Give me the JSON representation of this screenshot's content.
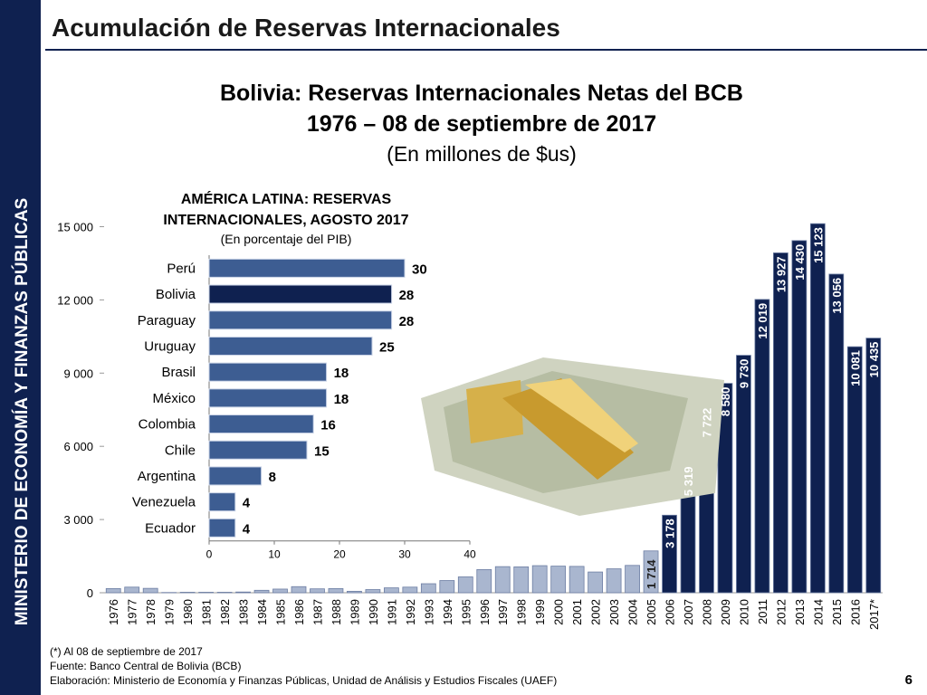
{
  "header": {
    "title": "Acumulación de Reservas Internacionales",
    "side_label": "MINISTERIO DE ECONOMÍA Y FINANZAS PÚBLICAS",
    "page_number": "6"
  },
  "chart_data": [
    {
      "type": "bar",
      "title": "Bolivia: Reservas Internacionales Netas del BCB",
      "subtitle": "1976 – 08 de septiembre de 2017",
      "unit_label": "(En millones de $us)",
      "categories": [
        "1976",
        "1977",
        "1978",
        "1979",
        "1980",
        "1981",
        "1982",
        "1983",
        "1984",
        "1985",
        "1986",
        "1987",
        "1988",
        "1989",
        "1990",
        "1991",
        "1992",
        "1993",
        "1994",
        "1995",
        "1996",
        "1997",
        "1998",
        "1999",
        "2000",
        "2001",
        "2002",
        "2003",
        "2004",
        "2005",
        "2006",
        "2007",
        "2008",
        "2009",
        "2010",
        "2011",
        "2012",
        "2013",
        "2014",
        "2015",
        "2016",
        "2017*"
      ],
      "values": [
        170,
        230,
        180,
        10,
        20,
        20,
        20,
        30,
        100,
        150,
        250,
        160,
        170,
        60,
        130,
        200,
        230,
        370,
        500,
        650,
        950,
        1070,
        1060,
        1110,
        1090,
        1080,
        850,
        980,
        1120,
        1714,
        3178,
        5319,
        7722,
        8580,
        9730,
        12019,
        13927,
        14430,
        15123,
        13056,
        10081,
        10435
      ],
      "value_labels": [
        null,
        null,
        null,
        null,
        null,
        null,
        null,
        null,
        null,
        null,
        null,
        null,
        null,
        null,
        null,
        null,
        null,
        null,
        null,
        null,
        null,
        null,
        null,
        null,
        null,
        null,
        null,
        null,
        null,
        "1 714",
        "3 178",
        "5 319",
        "7 722",
        "8 580",
        "9 730",
        "12 019",
        "13 927",
        "14 430",
        "15 123",
        "13 056",
        "10 081",
        "10 435"
      ],
      "colors": [
        "#a9b6cf",
        "#a9b6cf",
        "#a9b6cf",
        "#a9b6cf",
        "#a9b6cf",
        "#a9b6cf",
        "#a9b6cf",
        "#a9b6cf",
        "#a9b6cf",
        "#a9b6cf",
        "#a9b6cf",
        "#a9b6cf",
        "#a9b6cf",
        "#a9b6cf",
        "#a9b6cf",
        "#a9b6cf",
        "#a9b6cf",
        "#a9b6cf",
        "#a9b6cf",
        "#a9b6cf",
        "#a9b6cf",
        "#a9b6cf",
        "#a9b6cf",
        "#a9b6cf",
        "#a9b6cf",
        "#a9b6cf",
        "#a9b6cf",
        "#a9b6cf",
        "#a9b6cf",
        "#a9b6cf",
        "#0f2150",
        "#0f2150",
        "#0f2150",
        "#0f2150",
        "#0f2150",
        "#0f2150",
        "#0f2150",
        "#0f2150",
        "#0f2150",
        "#0f2150",
        "#0f2150",
        "#0f2150"
      ],
      "ylim": [
        0,
        15500
      ],
      "yticks": [
        0,
        {
          "value": 3000,
          "label": "3 000"
        },
        {
          "value": 6000,
          "label": "6 000"
        },
        {
          "value": 9000,
          "label": "9 000"
        },
        {
          "value": 12000,
          "label": "12 000"
        },
        {
          "value": 15000,
          "label": "15 000"
        }
      ]
    },
    {
      "type": "hbar",
      "title": "AMÉRICA LATINA: RESERVAS",
      "title_line2": "INTERNACIONALES, AGOSTO 2017",
      "subtitle": "(En porcentaje del PIB)",
      "categories": [
        "Perú",
        "Bolivia",
        "Paraguay",
        "Uruguay",
        "Brasil",
        "México",
        "Colombia",
        "Chile",
        "Argentina",
        "Venezuela",
        "Ecuador"
      ],
      "values": [
        30,
        28,
        28,
        25,
        18,
        18,
        16,
        15,
        8,
        4,
        4
      ],
      "colors": [
        "#3d5d92",
        "#0f2150",
        "#3d5d92",
        "#3d5d92",
        "#3d5d92",
        "#3d5d92",
        "#3d5d92",
        "#3d5d92",
        "#3d5d92",
        "#3d5d92",
        "#3d5d92"
      ],
      "xlim": [
        0,
        40
      ],
      "xticks": [
        0,
        10,
        20,
        30,
        40
      ]
    }
  ],
  "footer": {
    "notes": [
      "(*) Al 08 de septiembre de 2017",
      "Fuente: Banco Central de Bolivia (BCB)",
      "Elaboración: Ministerio de Economía y Finanzas Públicas, Unidad de Análisis y Estudios Fiscales (UAEF)"
    ]
  }
}
